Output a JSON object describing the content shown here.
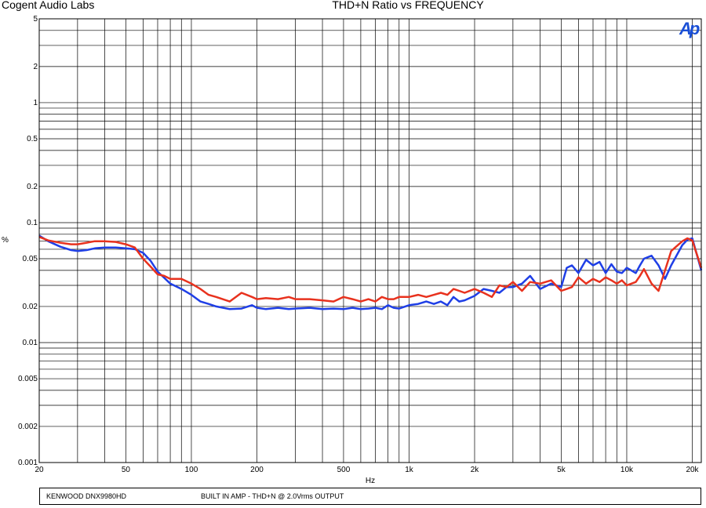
{
  "header": {
    "brand": "Cogent Audio Labs",
    "title": "THD+N Ratio vs FREQUENCY",
    "logo_text": "Ap"
  },
  "footer": {
    "device": "KENWOOD DNX9980HD",
    "description": "BUILT IN AMP -  THD+N @ 2.0Vrms OUTPUT"
  },
  "colors": {
    "series_blue": "#1f3fe6",
    "series_red": "#e8321e",
    "grid": "#000000",
    "logo": "#1a4fd6"
  },
  "chart_data": {
    "type": "line",
    "title": "THD+N Ratio vs FREQUENCY",
    "xlabel": "Hz",
    "ylabel": "%",
    "xscale": "log",
    "yscale": "log",
    "xlim": [
      20,
      22000
    ],
    "ylim": [
      0.001,
      5
    ],
    "x_ticks": [
      20,
      50,
      100,
      200,
      500,
      1000,
      2000,
      5000,
      10000,
      20000
    ],
    "x_tick_labels": [
      "20",
      "50",
      "100",
      "200",
      "500",
      "1k",
      "2k",
      "5k",
      "10k",
      "20k"
    ],
    "y_ticks": [
      5,
      2,
      1,
      0.5,
      0.2,
      0.1,
      0.05,
      0.02,
      0.01,
      0.005,
      0.002,
      0.001
    ],
    "y_tick_labels": [
      "5",
      "2",
      "1",
      "0.5",
      "0.2",
      "0.1",
      "0.05",
      "0.02",
      "0.01",
      "0.005",
      "0.002",
      "0.001"
    ],
    "grid": true,
    "series": [
      {
        "color": "#1f3fe6",
        "x": [
          20,
          22,
          25,
          28,
          30,
          33,
          36,
          40,
          45,
          50,
          55,
          60,
          65,
          70,
          80,
          90,
          100,
          110,
          120,
          130,
          150,
          170,
          190,
          200,
          220,
          250,
          280,
          300,
          350,
          400,
          450,
          500,
          550,
          600,
          650,
          700,
          750,
          800,
          850,
          900,
          1000,
          1100,
          1200,
          1300,
          1400,
          1500,
          1600,
          1700,
          1800,
          2000,
          2200,
          2400,
          2600,
          2800,
          3000,
          3300,
          3600,
          4000,
          4500,
          5000,
          5300,
          5600,
          6000,
          6500,
          7000,
          7500,
          8000,
          8500,
          9000,
          9500,
          10000,
          11000,
          11500,
          12000,
          13000,
          14000,
          15000,
          16000,
          18000,
          19000,
          20000,
          22000
        ],
        "y": [
          0.078,
          0.07,
          0.063,
          0.059,
          0.058,
          0.059,
          0.061,
          0.062,
          0.062,
          0.061,
          0.06,
          0.056,
          0.048,
          0.039,
          0.031,
          0.028,
          0.025,
          0.022,
          0.021,
          0.02,
          0.019,
          0.0192,
          0.0205,
          0.0195,
          0.019,
          0.0195,
          0.019,
          0.0192,
          0.0195,
          0.019,
          0.0192,
          0.019,
          0.0195,
          0.019,
          0.0192,
          0.0195,
          0.019,
          0.0205,
          0.0195,
          0.0192,
          0.0205,
          0.021,
          0.022,
          0.021,
          0.022,
          0.0205,
          0.024,
          0.022,
          0.0225,
          0.0245,
          0.028,
          0.027,
          0.026,
          0.029,
          0.029,
          0.031,
          0.036,
          0.028,
          0.031,
          0.029,
          0.042,
          0.044,
          0.038,
          0.049,
          0.044,
          0.047,
          0.038,
          0.045,
          0.039,
          0.038,
          0.042,
          0.038,
          0.044,
          0.05,
          0.053,
          0.044,
          0.034,
          0.044,
          0.065,
          0.072,
          0.074,
          0.04
        ]
      },
      {
        "color": "#e8321e",
        "x": [
          20,
          22,
          25,
          28,
          30,
          33,
          36,
          40,
          45,
          50,
          55,
          60,
          65,
          70,
          75,
          80,
          90,
          100,
          110,
          120,
          130,
          150,
          170,
          190,
          200,
          220,
          250,
          280,
          300,
          350,
          400,
          450,
          500,
          550,
          600,
          650,
          700,
          750,
          800,
          850,
          900,
          1000,
          1100,
          1200,
          1300,
          1400,
          1500,
          1600,
          1700,
          1800,
          2000,
          2200,
          2400,
          2600,
          2800,
          3000,
          3300,
          3600,
          4000,
          4500,
          5000,
          5300,
          5600,
          6000,
          6500,
          7000,
          7500,
          8000,
          8500,
          9000,
          9500,
          10000,
          11000,
          11500,
          12000,
          13000,
          14000,
          15000,
          16000,
          18000,
          19000,
          20000,
          22000
        ],
        "y": [
          0.076,
          0.071,
          0.068,
          0.066,
          0.066,
          0.068,
          0.07,
          0.07,
          0.069,
          0.066,
          0.062,
          0.05,
          0.043,
          0.037,
          0.036,
          0.034,
          0.034,
          0.031,
          0.028,
          0.025,
          0.024,
          0.022,
          0.026,
          0.024,
          0.023,
          0.0235,
          0.023,
          0.024,
          0.023,
          0.023,
          0.0225,
          0.022,
          0.024,
          0.023,
          0.022,
          0.023,
          0.022,
          0.024,
          0.023,
          0.023,
          0.024,
          0.024,
          0.025,
          0.024,
          0.025,
          0.026,
          0.025,
          0.028,
          0.027,
          0.026,
          0.028,
          0.026,
          0.024,
          0.03,
          0.029,
          0.032,
          0.027,
          0.032,
          0.031,
          0.033,
          0.027,
          0.028,
          0.029,
          0.035,
          0.031,
          0.034,
          0.032,
          0.035,
          0.033,
          0.031,
          0.033,
          0.03,
          0.032,
          0.036,
          0.041,
          0.031,
          0.027,
          0.04,
          0.058,
          0.07,
          0.074,
          0.071,
          0.042
        ]
      }
    ]
  }
}
